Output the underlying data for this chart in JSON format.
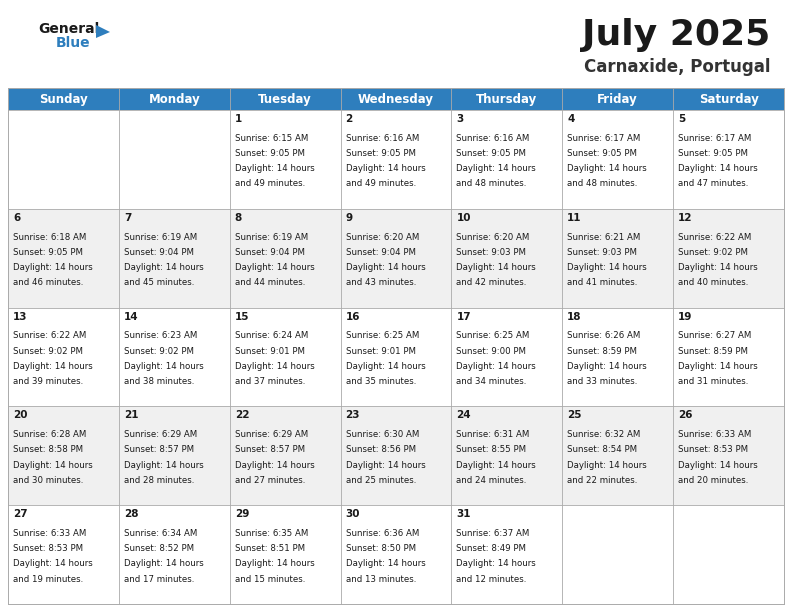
{
  "title": "July 2025",
  "subtitle": "Carnaxide, Portugal",
  "header_color": "#2E7EBD",
  "header_text_color": "#FFFFFF",
  "background_color": "#FFFFFF",
  "alt_row_color": "#F0F0F0",
  "grid_color": "#AAAAAA",
  "days_of_week": [
    "Sunday",
    "Monday",
    "Tuesday",
    "Wednesday",
    "Thursday",
    "Friday",
    "Saturday"
  ],
  "title_fontsize": 26,
  "subtitle_fontsize": 12,
  "header_fontsize": 8.5,
  "cell_fontsize": 6.2,
  "day_num_fontsize": 7.5,
  "logo_general_fontsize": 10,
  "logo_blue_fontsize": 10,
  "weeks": [
    [
      {
        "day": "",
        "sunrise": "",
        "sunset": "",
        "daylight": ""
      },
      {
        "day": "",
        "sunrise": "",
        "sunset": "",
        "daylight": ""
      },
      {
        "day": "1",
        "sunrise": "Sunrise: 6:15 AM",
        "sunset": "Sunset: 9:05 PM",
        "daylight": "Daylight: 14 hours\nand 49 minutes."
      },
      {
        "day": "2",
        "sunrise": "Sunrise: 6:16 AM",
        "sunset": "Sunset: 9:05 PM",
        "daylight": "Daylight: 14 hours\nand 49 minutes."
      },
      {
        "day": "3",
        "sunrise": "Sunrise: 6:16 AM",
        "sunset": "Sunset: 9:05 PM",
        "daylight": "Daylight: 14 hours\nand 48 minutes."
      },
      {
        "day": "4",
        "sunrise": "Sunrise: 6:17 AM",
        "sunset": "Sunset: 9:05 PM",
        "daylight": "Daylight: 14 hours\nand 48 minutes."
      },
      {
        "day": "5",
        "sunrise": "Sunrise: 6:17 AM",
        "sunset": "Sunset: 9:05 PM",
        "daylight": "Daylight: 14 hours\nand 47 minutes."
      }
    ],
    [
      {
        "day": "6",
        "sunrise": "Sunrise: 6:18 AM",
        "sunset": "Sunset: 9:05 PM",
        "daylight": "Daylight: 14 hours\nand 46 minutes."
      },
      {
        "day": "7",
        "sunrise": "Sunrise: 6:19 AM",
        "sunset": "Sunset: 9:04 PM",
        "daylight": "Daylight: 14 hours\nand 45 minutes."
      },
      {
        "day": "8",
        "sunrise": "Sunrise: 6:19 AM",
        "sunset": "Sunset: 9:04 PM",
        "daylight": "Daylight: 14 hours\nand 44 minutes."
      },
      {
        "day": "9",
        "sunrise": "Sunrise: 6:20 AM",
        "sunset": "Sunset: 9:04 PM",
        "daylight": "Daylight: 14 hours\nand 43 minutes."
      },
      {
        "day": "10",
        "sunrise": "Sunrise: 6:20 AM",
        "sunset": "Sunset: 9:03 PM",
        "daylight": "Daylight: 14 hours\nand 42 minutes."
      },
      {
        "day": "11",
        "sunrise": "Sunrise: 6:21 AM",
        "sunset": "Sunset: 9:03 PM",
        "daylight": "Daylight: 14 hours\nand 41 minutes."
      },
      {
        "day": "12",
        "sunrise": "Sunrise: 6:22 AM",
        "sunset": "Sunset: 9:02 PM",
        "daylight": "Daylight: 14 hours\nand 40 minutes."
      }
    ],
    [
      {
        "day": "13",
        "sunrise": "Sunrise: 6:22 AM",
        "sunset": "Sunset: 9:02 PM",
        "daylight": "Daylight: 14 hours\nand 39 minutes."
      },
      {
        "day": "14",
        "sunrise": "Sunrise: 6:23 AM",
        "sunset": "Sunset: 9:02 PM",
        "daylight": "Daylight: 14 hours\nand 38 minutes."
      },
      {
        "day": "15",
        "sunrise": "Sunrise: 6:24 AM",
        "sunset": "Sunset: 9:01 PM",
        "daylight": "Daylight: 14 hours\nand 37 minutes."
      },
      {
        "day": "16",
        "sunrise": "Sunrise: 6:25 AM",
        "sunset": "Sunset: 9:01 PM",
        "daylight": "Daylight: 14 hours\nand 35 minutes."
      },
      {
        "day": "17",
        "sunrise": "Sunrise: 6:25 AM",
        "sunset": "Sunset: 9:00 PM",
        "daylight": "Daylight: 14 hours\nand 34 minutes."
      },
      {
        "day": "18",
        "sunrise": "Sunrise: 6:26 AM",
        "sunset": "Sunset: 8:59 PM",
        "daylight": "Daylight: 14 hours\nand 33 minutes."
      },
      {
        "day": "19",
        "sunrise": "Sunrise: 6:27 AM",
        "sunset": "Sunset: 8:59 PM",
        "daylight": "Daylight: 14 hours\nand 31 minutes."
      }
    ],
    [
      {
        "day": "20",
        "sunrise": "Sunrise: 6:28 AM",
        "sunset": "Sunset: 8:58 PM",
        "daylight": "Daylight: 14 hours\nand 30 minutes."
      },
      {
        "day": "21",
        "sunrise": "Sunrise: 6:29 AM",
        "sunset": "Sunset: 8:57 PM",
        "daylight": "Daylight: 14 hours\nand 28 minutes."
      },
      {
        "day": "22",
        "sunrise": "Sunrise: 6:29 AM",
        "sunset": "Sunset: 8:57 PM",
        "daylight": "Daylight: 14 hours\nand 27 minutes."
      },
      {
        "day": "23",
        "sunrise": "Sunrise: 6:30 AM",
        "sunset": "Sunset: 8:56 PM",
        "daylight": "Daylight: 14 hours\nand 25 minutes."
      },
      {
        "day": "24",
        "sunrise": "Sunrise: 6:31 AM",
        "sunset": "Sunset: 8:55 PM",
        "daylight": "Daylight: 14 hours\nand 24 minutes."
      },
      {
        "day": "25",
        "sunrise": "Sunrise: 6:32 AM",
        "sunset": "Sunset: 8:54 PM",
        "daylight": "Daylight: 14 hours\nand 22 minutes."
      },
      {
        "day": "26",
        "sunrise": "Sunrise: 6:33 AM",
        "sunset": "Sunset: 8:53 PM",
        "daylight": "Daylight: 14 hours\nand 20 minutes."
      }
    ],
    [
      {
        "day": "27",
        "sunrise": "Sunrise: 6:33 AM",
        "sunset": "Sunset: 8:53 PM",
        "daylight": "Daylight: 14 hours\nand 19 minutes."
      },
      {
        "day": "28",
        "sunrise": "Sunrise: 6:34 AM",
        "sunset": "Sunset: 8:52 PM",
        "daylight": "Daylight: 14 hours\nand 17 minutes."
      },
      {
        "day": "29",
        "sunrise": "Sunrise: 6:35 AM",
        "sunset": "Sunset: 8:51 PM",
        "daylight": "Daylight: 14 hours\nand 15 minutes."
      },
      {
        "day": "30",
        "sunrise": "Sunrise: 6:36 AM",
        "sunset": "Sunset: 8:50 PM",
        "daylight": "Daylight: 14 hours\nand 13 minutes."
      },
      {
        "day": "31",
        "sunrise": "Sunrise: 6:37 AM",
        "sunset": "Sunset: 8:49 PM",
        "daylight": "Daylight: 14 hours\nand 12 minutes."
      },
      {
        "day": "",
        "sunrise": "",
        "sunset": "",
        "daylight": ""
      },
      {
        "day": "",
        "sunrise": "",
        "sunset": "",
        "daylight": ""
      }
    ]
  ]
}
